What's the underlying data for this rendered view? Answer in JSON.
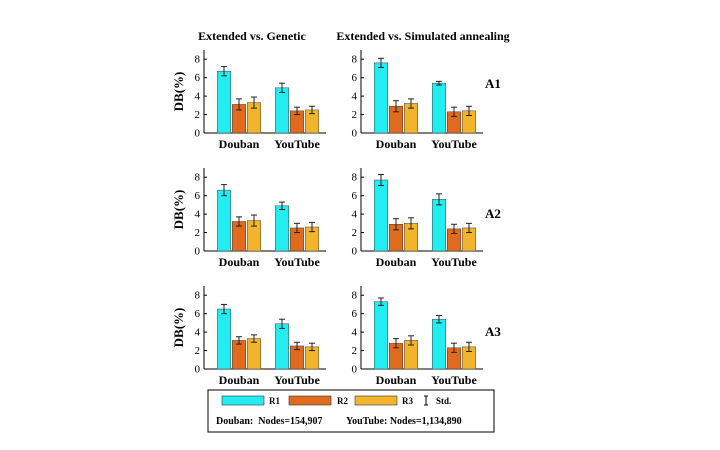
{
  "column_titles": [
    "Extended vs. Genetic",
    "Extended vs. Simulated annealing"
  ],
  "row_labels": [
    "A1",
    "A2",
    "A3"
  ],
  "legend": {
    "R1": "R1",
    "R2": "R2",
    "R3": "R3",
    "std": "Std.",
    "colors": {
      "R1": "#22eef2",
      "R2": "#e06a1e",
      "R3": "#f2b42c"
    },
    "douban_note": "Douban:  Nodes=154,907",
    "youtube_note": "YouTube: Nodes=1,134,890"
  },
  "chart_data": [
    {
      "type": "bar",
      "panel": "A1-genetic",
      "categories": [
        "Douban",
        "YouTube"
      ],
      "ylabel": "DB(%)",
      "ylim": [
        0,
        9
      ],
      "yticks": [
        0,
        2,
        4,
        6,
        8
      ],
      "series": [
        {
          "name": "R1",
          "values": [
            6.7,
            4.9
          ],
          "errors": [
            0.5,
            0.5
          ]
        },
        {
          "name": "R2",
          "values": [
            3.1,
            2.4
          ],
          "errors": [
            0.6,
            0.4
          ]
        },
        {
          "name": "R3",
          "values": [
            3.3,
            2.5
          ],
          "errors": [
            0.6,
            0.4
          ]
        }
      ]
    },
    {
      "type": "bar",
      "panel": "A1-annealing",
      "categories": [
        "Douban",
        "YouTube"
      ],
      "ylabel": "",
      "ylim": [
        0,
        9
      ],
      "yticks": [
        0,
        2,
        4,
        6,
        8
      ],
      "series": [
        {
          "name": "R1",
          "values": [
            7.6,
            5.4
          ],
          "errors": [
            0.5,
            0.2
          ]
        },
        {
          "name": "R2",
          "values": [
            2.9,
            2.3
          ],
          "errors": [
            0.6,
            0.5
          ]
        },
        {
          "name": "R3",
          "values": [
            3.2,
            2.4
          ],
          "errors": [
            0.5,
            0.5
          ]
        }
      ]
    },
    {
      "type": "bar",
      "panel": "A2-genetic",
      "categories": [
        "Douban",
        "YouTube"
      ],
      "ylabel": "DB(%)",
      "ylim": [
        0,
        9
      ],
      "yticks": [
        0,
        2,
        4,
        6,
        8
      ],
      "series": [
        {
          "name": "R1",
          "values": [
            6.6,
            4.9
          ],
          "errors": [
            0.6,
            0.4
          ]
        },
        {
          "name": "R2",
          "values": [
            3.2,
            2.5
          ],
          "errors": [
            0.5,
            0.5
          ]
        },
        {
          "name": "R3",
          "values": [
            3.3,
            2.6
          ],
          "errors": [
            0.6,
            0.5
          ]
        }
      ]
    },
    {
      "type": "bar",
      "panel": "A2-annealing",
      "categories": [
        "Douban",
        "YouTube"
      ],
      "ylabel": "",
      "ylim": [
        0,
        9
      ],
      "yticks": [
        0,
        2,
        4,
        6,
        8
      ],
      "series": [
        {
          "name": "R1",
          "values": [
            7.7,
            5.6
          ],
          "errors": [
            0.6,
            0.6
          ]
        },
        {
          "name": "R2",
          "values": [
            2.9,
            2.4
          ],
          "errors": [
            0.6,
            0.5
          ]
        },
        {
          "name": "R3",
          "values": [
            3.0,
            2.5
          ],
          "errors": [
            0.6,
            0.5
          ]
        }
      ]
    },
    {
      "type": "bar",
      "panel": "A3-genetic",
      "categories": [
        "Douban",
        "YouTube"
      ],
      "ylabel": "DB(%)",
      "ylim": [
        0,
        9
      ],
      "yticks": [
        0,
        2,
        4,
        6,
        8
      ],
      "series": [
        {
          "name": "R1",
          "values": [
            6.5,
            4.9
          ],
          "errors": [
            0.5,
            0.5
          ]
        },
        {
          "name": "R2",
          "values": [
            3.1,
            2.5
          ],
          "errors": [
            0.4,
            0.4
          ]
        },
        {
          "name": "R3",
          "values": [
            3.3,
            2.4
          ],
          "errors": [
            0.4,
            0.4
          ]
        }
      ]
    },
    {
      "type": "bar",
      "panel": "A3-annealing",
      "categories": [
        "Douban",
        "YouTube"
      ],
      "ylabel": "",
      "ylim": [
        0,
        9
      ],
      "yticks": [
        0,
        2,
        4,
        6,
        8
      ],
      "series": [
        {
          "name": "R1",
          "values": [
            7.3,
            5.4
          ],
          "errors": [
            0.4,
            0.4
          ]
        },
        {
          "name": "R2",
          "values": [
            2.8,
            2.3
          ],
          "errors": [
            0.5,
            0.5
          ]
        },
        {
          "name": "R3",
          "values": [
            3.1,
            2.4
          ],
          "errors": [
            0.5,
            0.5
          ]
        }
      ]
    }
  ]
}
